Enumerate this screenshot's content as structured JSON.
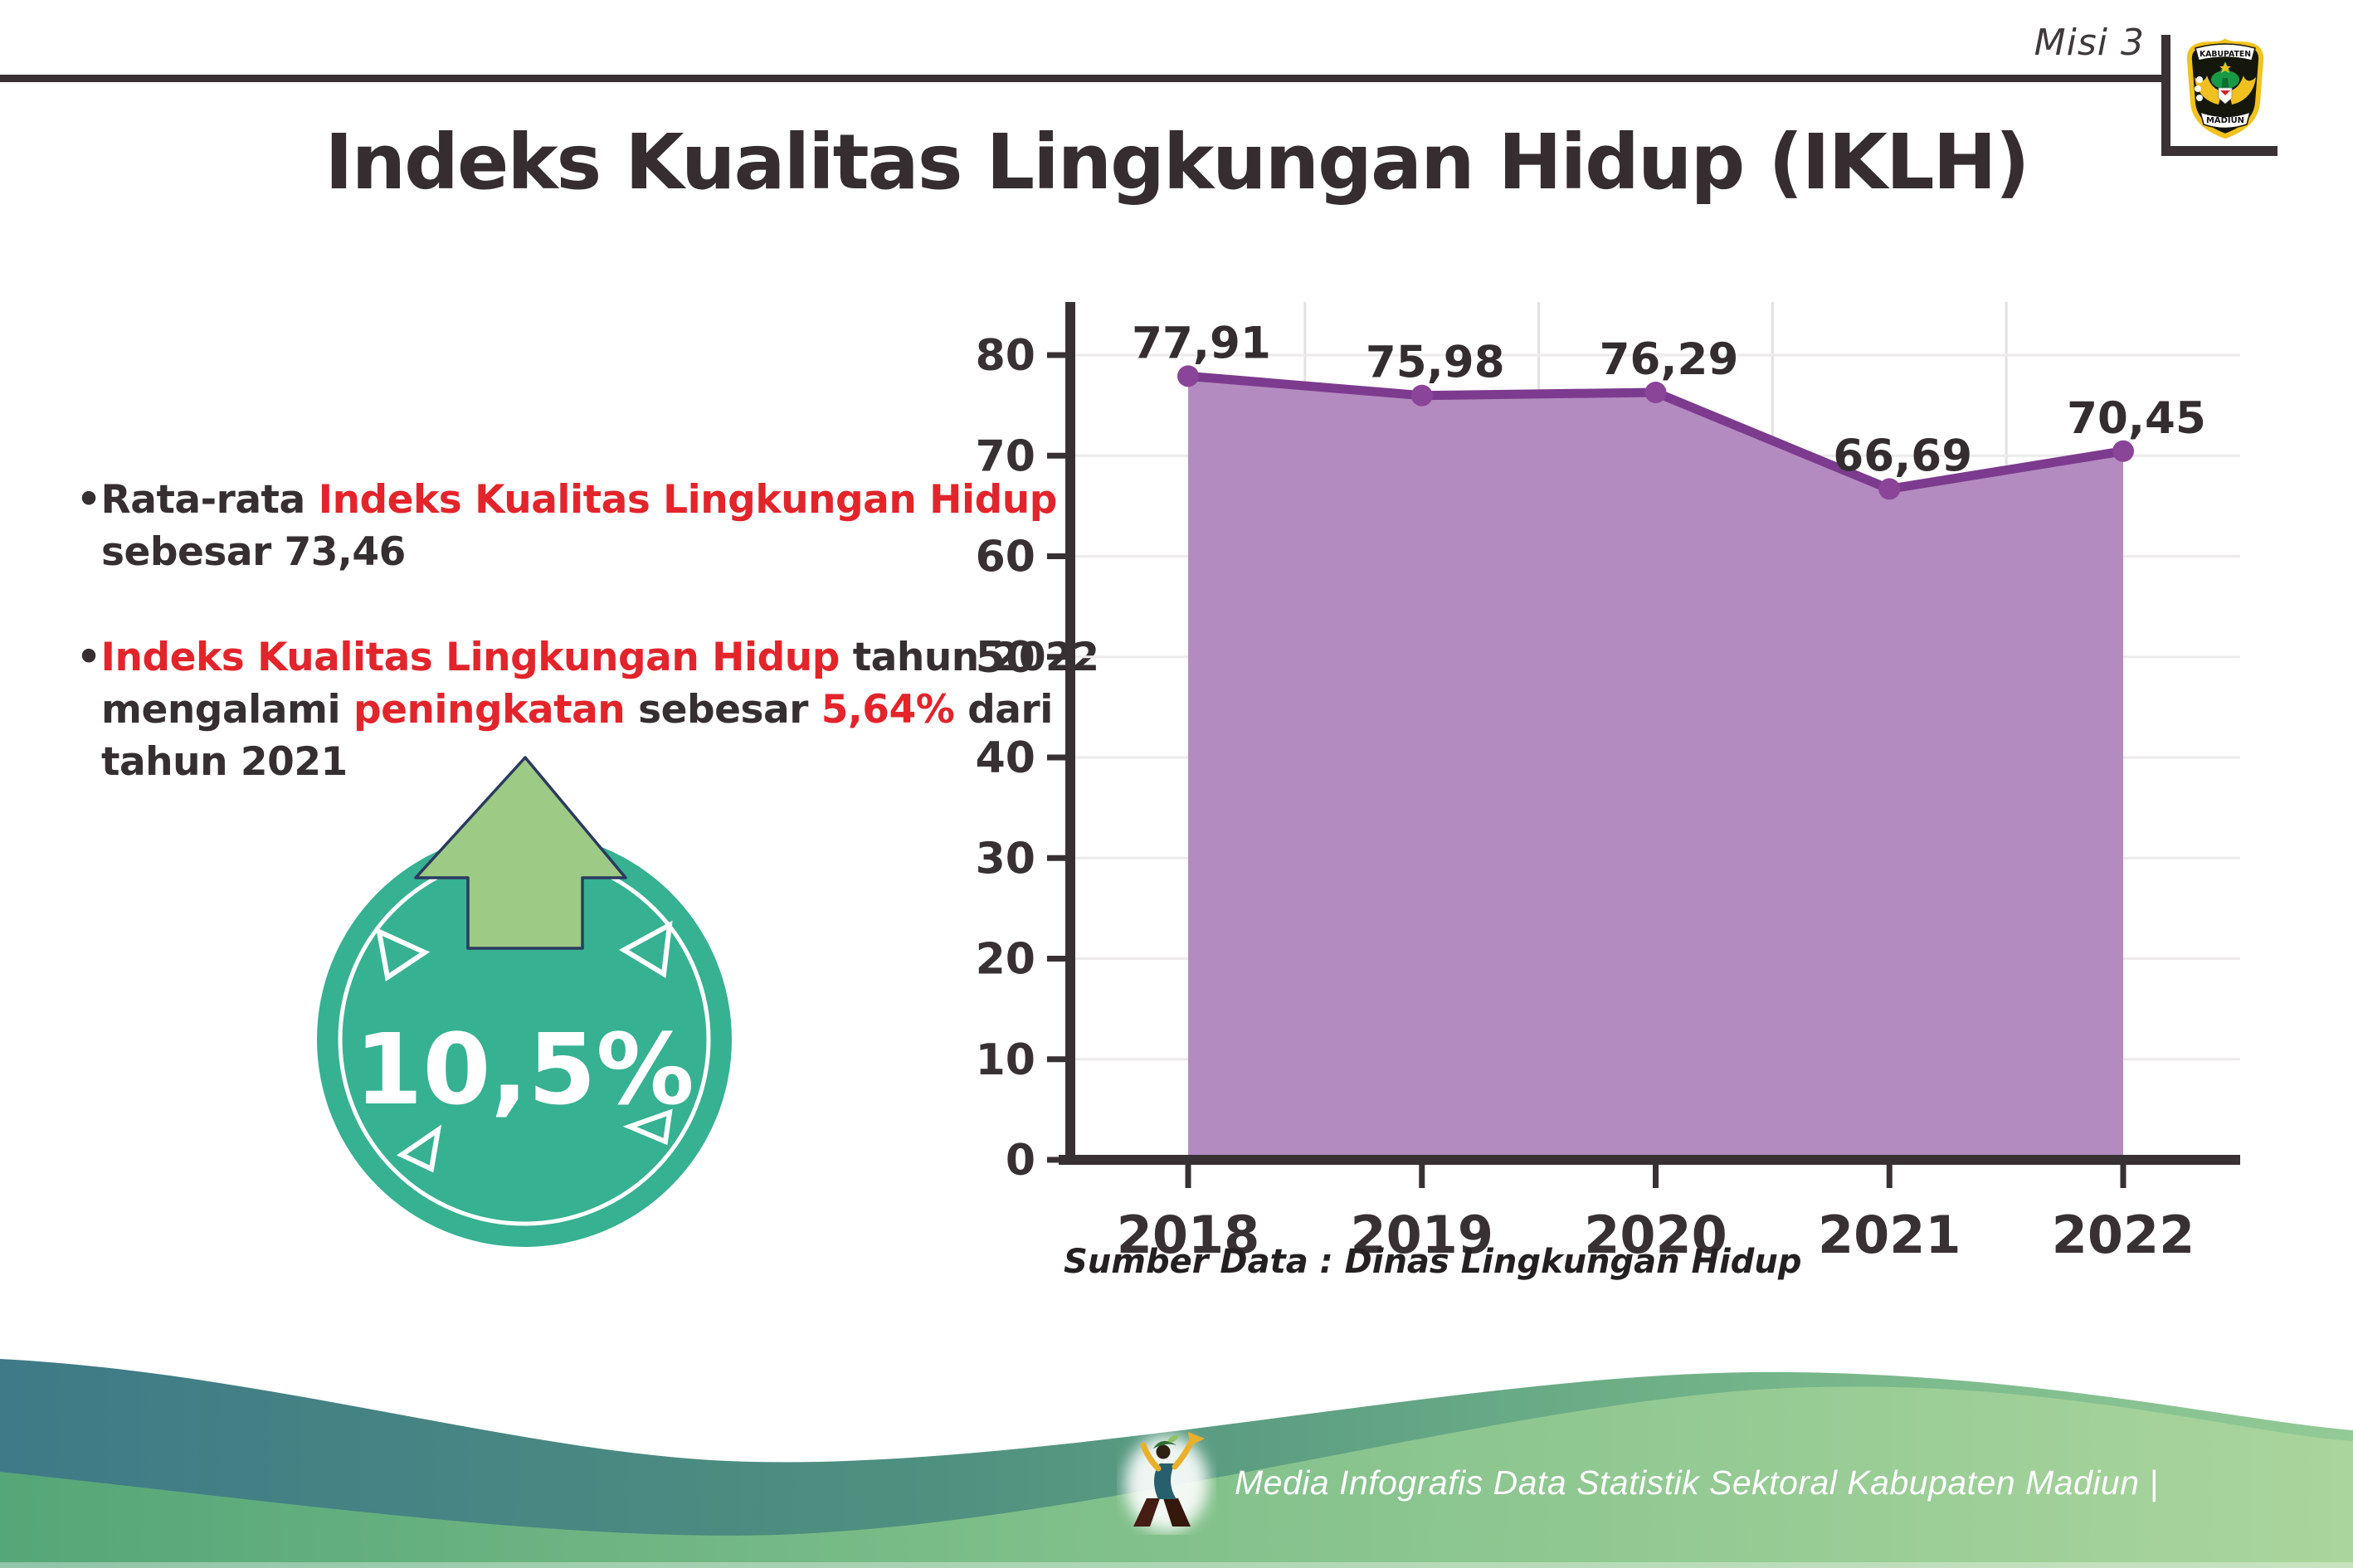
{
  "page": {
    "misi_label": "Misi 3",
    "title": "Indeks Kualitas Lingkungan Hidup (IKLH)",
    "logo": {
      "top": "KABUPATEN",
      "bottom": "MADIUN"
    },
    "source_note": "Sumber Data : Dinas Lingkungan Hidup",
    "footer_caption": "Media Infografis Data Statistik Sektoral Kabupaten Madiun |"
  },
  "bullets": [
    {
      "segments": [
        {
          "text": "•Rata-rata ",
          "color": "dark"
        },
        {
          "text": "Indeks Kualitas Lingkungan Hidup",
          "color": "red"
        },
        {
          "br": true
        },
        {
          "text": "sebesar 73,46",
          "color": "dark"
        }
      ]
    },
    {
      "segments": [
        {
          "text": "•",
          "color": "dark"
        },
        {
          "text": "Indeks Kualitas Lingkungan Hidup",
          "color": "red"
        },
        {
          "text": " tahun 2022",
          "color": "dark"
        },
        {
          "br": true
        },
        {
          "text": "mengalami ",
          "color": "dark"
        },
        {
          "text": "peningkatan",
          "color": "red"
        },
        {
          "text": " sebesar ",
          "color": "dark"
        },
        {
          "text": "5,64%",
          "color": "red"
        },
        {
          "text": " dari",
          "color": "dark"
        },
        {
          "br": true
        },
        {
          "text": "tahun 2021",
          "color": "dark"
        }
      ]
    }
  ],
  "badge": {
    "value": "10,5%",
    "icon": "up-arrow",
    "circle_color": "#36b192",
    "arrow_color": "#9dca85"
  },
  "chart_data": {
    "type": "area",
    "title": "",
    "xlabel": "",
    "ylabel": "",
    "categories": [
      "2018",
      "2019",
      "2020",
      "2021",
      "2022"
    ],
    "series": [
      {
        "name": "IKLH",
        "values": [
          77.91,
          75.98,
          76.29,
          66.69,
          70.45
        ]
      }
    ],
    "value_labels": [
      "77,91",
      "75,98",
      "76,29",
      "66,69",
      "70,45"
    ],
    "ylim": [
      0,
      80
    ],
    "yticks": [
      0,
      10,
      20,
      30,
      40,
      50,
      60,
      70,
      80
    ],
    "grid": true,
    "legend": "none",
    "colors": {
      "area": "#b48bc0",
      "line": "#7c3b8e",
      "marker": "#8a4598",
      "grid_h": "#eceaea",
      "grid_v": "#e3e0e0",
      "axis": "#383134",
      "label": "#342d30"
    }
  },
  "colors": {
    "accent_red": "#e3242b",
    "text_dark": "#362f32",
    "rule_dark": "#3a3134",
    "wave_teal": "#3e7a87",
    "wave_green": "#7fbf8a"
  }
}
